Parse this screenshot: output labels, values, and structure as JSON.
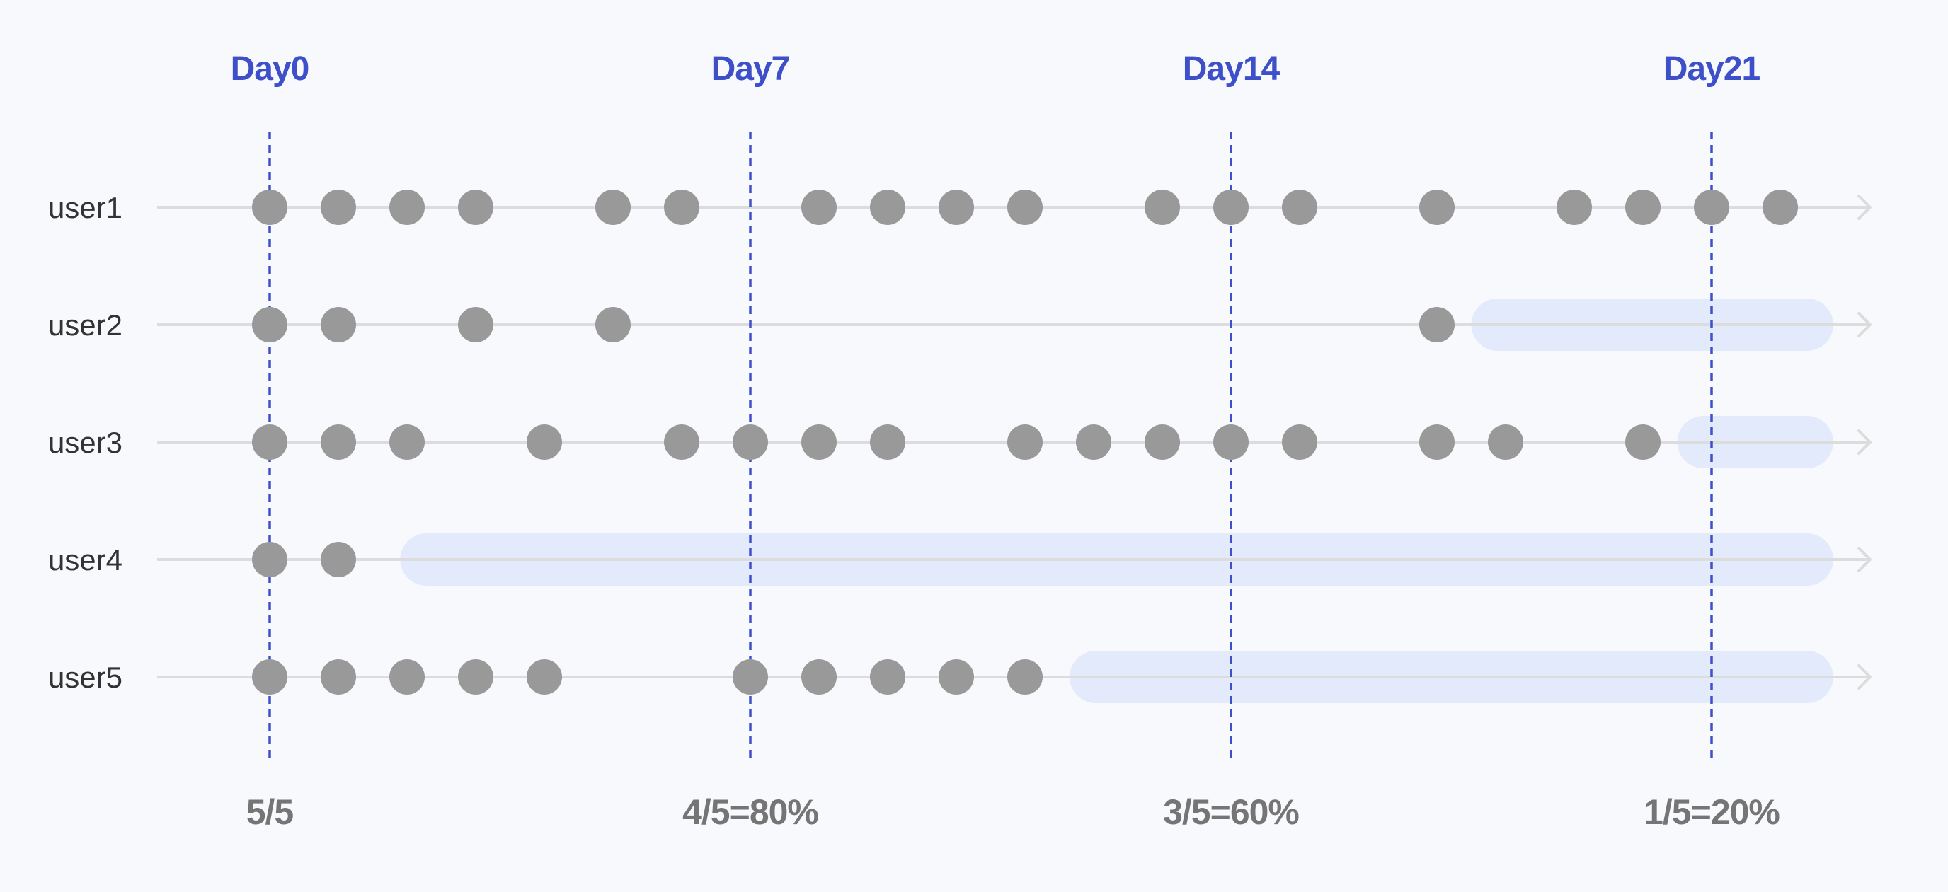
{
  "colors": {
    "background": "#f8f9fc",
    "day_label": "#3d4fc9",
    "day_line": "#3d4fc9",
    "user_label": "#333333",
    "ratio_label": "#757575",
    "track": "#dcdcdc",
    "dot": "#999999",
    "churn_band": "#e3eafb"
  },
  "days": [
    {
      "label": "Day0",
      "day": 0,
      "ratio": "5/5"
    },
    {
      "label": "Day7",
      "day": 7,
      "ratio": "4/5=80%"
    },
    {
      "label": "Day14",
      "day": 14,
      "ratio": "3/5=60%"
    },
    {
      "label": "Day21",
      "day": 21,
      "ratio": "1/5=20%"
    }
  ],
  "users": [
    {
      "name": "user1",
      "active_days": [
        0,
        1,
        2,
        3,
        5,
        6,
        8,
        9,
        10,
        11,
        13,
        14,
        15,
        17,
        19,
        20,
        21,
        22
      ],
      "churn_from_day": null
    },
    {
      "name": "user2",
      "active_days": [
        0,
        1,
        3,
        5,
        17
      ],
      "churn_from_day": 17.5
    },
    {
      "name": "user3",
      "active_days": [
        0,
        1,
        2,
        4,
        6,
        7,
        8,
        9,
        11,
        12,
        13,
        14,
        15,
        17,
        18,
        20
      ],
      "churn_from_day": 20.5
    },
    {
      "name": "user4",
      "active_days": [
        0,
        1
      ],
      "churn_from_day": 1.9
    },
    {
      "name": "user5",
      "active_days": [
        0,
        1,
        2,
        3,
        4,
        7,
        8,
        9,
        10,
        11
      ],
      "churn_from_day": 11.65
    }
  ],
  "timeline_end_day": 22.7
}
